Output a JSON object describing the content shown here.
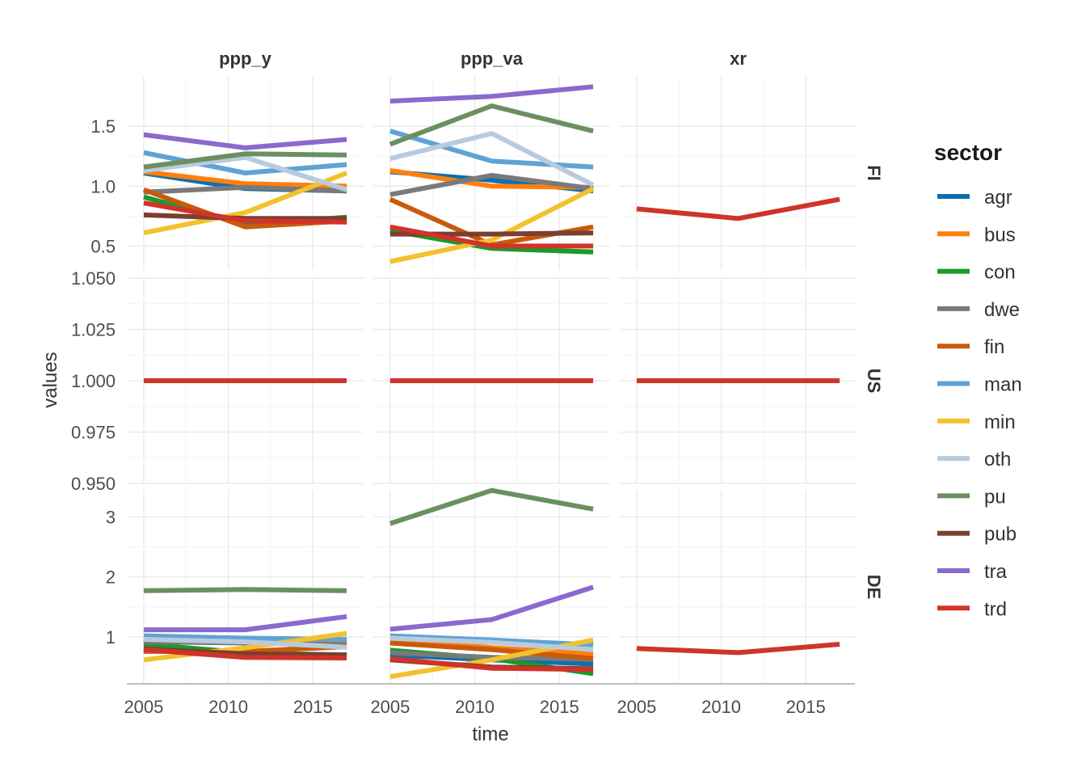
{
  "chart_data": {
    "type": "line",
    "x_label": "time",
    "y_label": "values",
    "columns": [
      "ppp_y",
      "ppp_va",
      "xr"
    ],
    "rows": [
      "FI",
      "US",
      "DE"
    ],
    "x_ticks": [
      2005,
      2010,
      2015
    ],
    "xlim": [
      2004,
      2018
    ],
    "x": [
      2005,
      2011,
      2017
    ],
    "legend": {
      "title": "sector",
      "position": "right"
    },
    "sectors": [
      {
        "name": "agr",
        "color": "#0E6FB0"
      },
      {
        "name": "bus",
        "color": "#FF7F0E"
      },
      {
        "name": "con",
        "color": "#1A9A2A"
      },
      {
        "name": "dwe",
        "color": "#7A7A7A"
      },
      {
        "name": "fin",
        "color": "#C95A0C"
      },
      {
        "name": "man",
        "color": "#5FA3D4"
      },
      {
        "name": "min",
        "color": "#F2C12E"
      },
      {
        "name": "oth",
        "color": "#B8CBDE"
      },
      {
        "name": "pu",
        "color": "#6A9060"
      },
      {
        "name": "pub",
        "color": "#7B3F2E"
      },
      {
        "name": "tra",
        "color": "#8A6ACF"
      },
      {
        "name": "trd",
        "color": "#D0332A"
      }
    ],
    "row_scales": {
      "FI": {
        "ylim": [
          0.3,
          1.92
        ],
        "ticks": [
          0.5,
          1.0,
          1.5
        ],
        "tick_labels": [
          "0.5",
          "1.0",
          "1.5"
        ]
      },
      "US": {
        "ylim": [
          0.95,
          1.05
        ],
        "ticks": [
          0.95,
          0.975,
          1.0,
          1.025,
          1.05
        ],
        "tick_labels": [
          "0.950",
          "0.975",
          "1.000",
          "1.025",
          "1.050"
        ]
      },
      "DE": {
        "ylim": [
          0.22,
          3.45
        ],
        "ticks": [
          1,
          2,
          3
        ],
        "tick_labels": [
          "1",
          "2",
          "3"
        ]
      }
    },
    "panels": [
      {
        "row": "FI",
        "col": "ppp_y",
        "series": [
          {
            "sector": "agr",
            "values": [
              1.11,
              0.98,
              0.96
            ]
          },
          {
            "sector": "bus",
            "values": [
              1.12,
              1.02,
              1.0
            ]
          },
          {
            "sector": "con",
            "values": [
              0.91,
              0.68,
              0.74
            ]
          },
          {
            "sector": "dwe",
            "values": [
              0.95,
              0.99,
              0.96
            ]
          },
          {
            "sector": "fin",
            "values": [
              0.97,
              0.66,
              0.71
            ]
          },
          {
            "sector": "man",
            "values": [
              1.28,
              1.11,
              1.18
            ]
          },
          {
            "sector": "min",
            "values": [
              0.61,
              0.78,
              1.11
            ]
          },
          {
            "sector": "oth",
            "values": [
              1.13,
              1.24,
              0.97
            ]
          },
          {
            "sector": "pu",
            "values": [
              1.16,
              1.27,
              1.26
            ]
          },
          {
            "sector": "pub",
            "values": [
              0.76,
              0.73,
              0.73
            ]
          },
          {
            "sector": "tra",
            "values": [
              1.43,
              1.32,
              1.39
            ]
          },
          {
            "sector": "trd",
            "values": [
              0.86,
              0.71,
              0.7
            ]
          }
        ]
      },
      {
        "row": "FI",
        "col": "ppp_va",
        "series": [
          {
            "sector": "agr",
            "values": [
              1.12,
              1.05,
              0.96
            ]
          },
          {
            "sector": "bus",
            "values": [
              1.13,
              1.0,
              0.99
            ]
          },
          {
            "sector": "con",
            "values": [
              0.63,
              0.48,
              0.45
            ]
          },
          {
            "sector": "dwe",
            "values": [
              0.93,
              1.09,
              0.98
            ]
          },
          {
            "sector": "fin",
            "values": [
              0.89,
              0.51,
              0.66
            ]
          },
          {
            "sector": "man",
            "values": [
              1.46,
              1.21,
              1.16
            ]
          },
          {
            "sector": "min",
            "values": [
              0.37,
              0.55,
              0.98
            ]
          },
          {
            "sector": "oth",
            "values": [
              1.23,
              1.44,
              1.01
            ]
          },
          {
            "sector": "pu",
            "values": [
              1.35,
              1.67,
              1.46
            ]
          },
          {
            "sector": "pub",
            "values": [
              0.6,
              0.6,
              0.61
            ]
          },
          {
            "sector": "tra",
            "values": [
              1.71,
              1.75,
              1.83
            ]
          },
          {
            "sector": "trd",
            "values": [
              0.66,
              0.5,
              0.5
            ]
          }
        ]
      },
      {
        "row": "FI",
        "col": "xr",
        "series": [
          {
            "sector": "trd",
            "values": [
              0.81,
              0.73,
              0.89
            ]
          }
        ]
      },
      {
        "row": "US",
        "col": "ppp_y",
        "series": [
          {
            "sector": "trd",
            "values": [
              1.0,
              1.0,
              1.0
            ]
          }
        ]
      },
      {
        "row": "US",
        "col": "ppp_va",
        "series": [
          {
            "sector": "trd",
            "values": [
              1.0,
              1.0,
              1.0
            ]
          }
        ]
      },
      {
        "row": "US",
        "col": "xr",
        "series": [
          {
            "sector": "trd",
            "values": [
              1.0,
              1.0,
              1.0
            ]
          }
        ]
      },
      {
        "row": "DE",
        "col": "ppp_y",
        "series": [
          {
            "sector": "agr",
            "values": [
              0.95,
              0.92,
              0.95
            ]
          },
          {
            "sector": "bus",
            "values": [
              0.98,
              0.9,
              0.91
            ]
          },
          {
            "sector": "con",
            "values": [
              0.88,
              0.74,
              0.7
            ]
          },
          {
            "sector": "dwe",
            "values": [
              0.92,
              0.9,
              0.87
            ]
          },
          {
            "sector": "fin",
            "values": [
              0.76,
              0.76,
              0.84
            ]
          },
          {
            "sector": "man",
            "values": [
              1.02,
              0.98,
              0.96
            ]
          },
          {
            "sector": "min",
            "values": [
              0.62,
              0.82,
              1.06
            ]
          },
          {
            "sector": "oth",
            "values": [
              0.96,
              0.92,
              0.83
            ]
          },
          {
            "sector": "pu",
            "values": [
              1.77,
              1.79,
              1.77
            ]
          },
          {
            "sector": "pub",
            "values": [
              0.8,
              0.72,
              0.7
            ]
          },
          {
            "sector": "tra",
            "values": [
              1.12,
              1.12,
              1.34
            ]
          },
          {
            "sector": "trd",
            "values": [
              0.79,
              0.66,
              0.65
            ]
          }
        ]
      },
      {
        "row": "DE",
        "col": "ppp_va",
        "series": [
          {
            "sector": "agr",
            "values": [
              0.7,
              0.62,
              0.55
            ]
          },
          {
            "sector": "bus",
            "values": [
              0.98,
              0.82,
              0.72
            ]
          },
          {
            "sector": "con",
            "values": [
              0.78,
              0.64,
              0.39
            ]
          },
          {
            "sector": "dwe",
            "values": [
              0.74,
              0.66,
              0.63
            ]
          },
          {
            "sector": "fin",
            "values": [
              0.9,
              0.79,
              0.64
            ]
          },
          {
            "sector": "man",
            "values": [
              1.02,
              0.95,
              0.87
            ]
          },
          {
            "sector": "min",
            "values": [
              0.34,
              0.62,
              0.95
            ]
          },
          {
            "sector": "oth",
            "values": [
              0.98,
              0.91,
              0.79
            ]
          },
          {
            "sector": "pu",
            "values": [
              2.89,
              3.44,
              3.13
            ]
          },
          {
            "sector": "pub",
            "values": [
              0.62,
              0.5,
              0.47
            ]
          },
          {
            "sector": "tra",
            "values": [
              1.13,
              1.29,
              1.83
            ]
          },
          {
            "sector": "trd",
            "values": [
              0.64,
              0.48,
              0.46
            ]
          }
        ]
      },
      {
        "row": "DE",
        "col": "xr",
        "series": [
          {
            "sector": "trd",
            "values": [
              0.81,
              0.74,
              0.88
            ]
          }
        ]
      }
    ]
  }
}
